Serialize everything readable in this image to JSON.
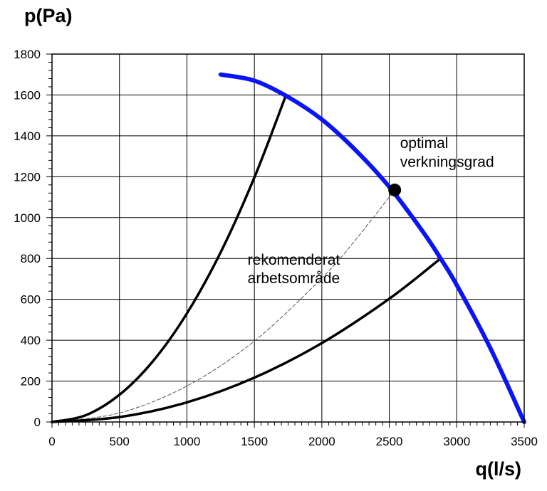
{
  "chart_data": {
    "type": "line",
    "ylabel": "p(Pa)",
    "xlabel": "q(l/s)",
    "xlim": [
      0,
      3500
    ],
    "ylim": [
      0,
      1800
    ],
    "grid": true,
    "x_ticks": [
      0,
      500,
      1000,
      1500,
      2000,
      2500,
      3000,
      3500
    ],
    "y_ticks": [
      0,
      200,
      400,
      600,
      800,
      1000,
      1200,
      1400,
      1600,
      1800
    ],
    "x_tick_labels": [
      "0",
      "500",
      "1000",
      "1500",
      "2000",
      "2500",
      "3000",
      "3500"
    ],
    "y_tick_labels": [
      "0",
      "200",
      "400",
      "600",
      "800",
      "1000",
      "1200",
      "1400",
      "1600",
      "1800"
    ],
    "series": [
      {
        "kind": "fan-curve",
        "color": "#0a14f5",
        "style": "solid",
        "x": [
          1250,
          1500,
          1750,
          2000,
          2250,
          2500,
          2750,
          2880,
          3000,
          3250,
          3500
        ],
        "y": [
          1700,
          1670,
          1590,
          1480,
          1330,
          1150,
          930,
          800,
          670,
          360,
          0
        ]
      },
      {
        "kind": "system-curve",
        "color": "#000000",
        "style": "solid",
        "x": [
          0,
          250,
          500,
          750,
          1000,
          1250,
          1500,
          1735
        ],
        "y": [
          0,
          33,
          133,
          299,
          531,
          830,
          1196,
          1600
        ]
      },
      {
        "kind": "system-curve",
        "color": "#000000",
        "style": "dashed",
        "x": [
          0,
          500,
          1000,
          1500,
          2000,
          2250,
          2540
        ],
        "y": [
          0,
          44,
          176,
          396,
          704,
          891,
          1135
        ]
      },
      {
        "kind": "system-curve",
        "color": "#000000",
        "style": "solid",
        "x": [
          0,
          500,
          1000,
          1500,
          2000,
          2500,
          2880
        ],
        "y": [
          0,
          24,
          96,
          217,
          386,
          603,
          800
        ]
      }
    ],
    "points": [
      {
        "x": 2540,
        "y": 1135,
        "color": "#000000"
      }
    ],
    "annotations": [
      {
        "lines": [
          "optimal",
          "verkningsgrad"
        ],
        "x": 2580,
        "y": 1340
      },
      {
        "lines": [
          "rekomenderat",
          "arbetsområde"
        ],
        "x": 1450,
        "y": 770
      }
    ]
  }
}
